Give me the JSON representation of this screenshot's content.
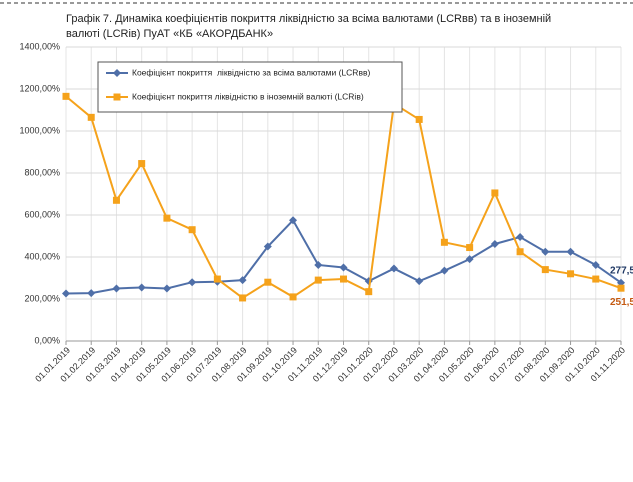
{
  "chart_data": {
    "type": "line",
    "title": "Графік 7. Динаміка коефіцієнтів покриття ліквідністю за всіма валютами (LCRвв) та в іноземній валюті (LCRів) ПуАТ «КБ «АКОРДБАНК»",
    "categories": [
      "01.01.2019",
      "01.02.2019",
      "01.03.2019",
      "01.04.2019",
      "01.05.2019",
      "01.06.2019",
      "01.07.2019",
      "01.08.2019",
      "01.09.2019",
      "01.10.2019",
      "01.11.2019",
      "01.12.2019",
      "01.01.2020",
      "01.02.2020",
      "01.03.2020",
      "01.04.2020",
      "01.05.2020",
      "01.06.2020",
      "01.07.2020",
      "01.08.2020",
      "01.09.2020",
      "01.10.2020",
      "01.11.2020"
    ],
    "series": [
      {
        "name": "Коефіцієнт покриття  ліквідністю за всіма валютами (LCRвв)",
        "color": "#4f6fa8",
        "marker": "diamond",
        "values": [
          226,
          228,
          250,
          255,
          250,
          280,
          282,
          290,
          450,
          575,
          362,
          350,
          285,
          345,
          285,
          335,
          390,
          462,
          495,
          425,
          425,
          362,
          277.5
        ],
        "value_labels": [
          null,
          null,
          null,
          null,
          null,
          null,
          null,
          null,
          null,
          null,
          null,
          null,
          null,
          null,
          null,
          null,
          null,
          null,
          null,
          null,
          null,
          null,
          "277,5"
        ],
        "label_color": "#1f3864"
      },
      {
        "name": "Коефіцієнт покриття ліквідністю в іноземній валюті (LCRів)",
        "color": "#f5a21b",
        "marker": "square",
        "values": [
          1165,
          1065,
          670,
          845,
          585,
          530,
          295,
          205,
          280,
          210,
          290,
          295,
          235,
          1130,
          1055,
          470,
          445,
          705,
          425,
          340,
          320,
          295,
          251.5
        ],
        "value_labels": [
          null,
          null,
          null,
          null,
          null,
          null,
          null,
          null,
          null,
          null,
          null,
          null,
          null,
          null,
          null,
          null,
          null,
          null,
          null,
          null,
          null,
          null,
          "251,5"
        ],
        "label_color": "#c55a11"
      }
    ],
    "ylim": [
      0,
      1400
    ],
    "yticks": [
      {
        "value": 0,
        "label": "0,00%"
      },
      {
        "value": 200,
        "label": "200,00%"
      },
      {
        "value": 400,
        "label": "400,00%"
      },
      {
        "value": 600,
        "label": "600,00%"
      },
      {
        "value": 800,
        "label": "800,00%"
      },
      {
        "value": 1000,
        "label": "1000,00%"
      },
      {
        "value": 1200,
        "label": "1200,00%"
      },
      {
        "value": 1400,
        "label": "1400,00%"
      }
    ],
    "grid": true
  }
}
